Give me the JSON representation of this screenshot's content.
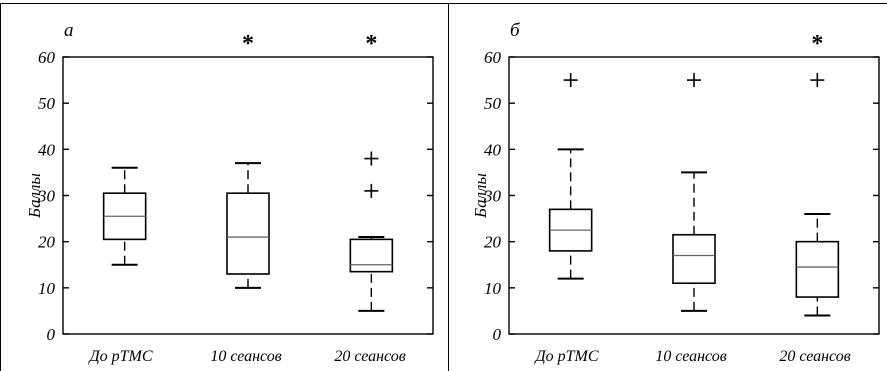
{
  "chart_data": [
    {
      "type": "box",
      "panel_label": "а",
      "ylabel": "Баллы",
      "ylim": [
        0,
        60
      ],
      "yticks": [
        "0",
        "10",
        "20",
        "30",
        "40",
        "50",
        "60"
      ],
      "grid": false,
      "categories": [
        "До рТМС",
        "10 сеансов",
        "20 сеансов"
      ],
      "boxes": [
        {
          "whisker_low": 15,
          "q1": 20.5,
          "median": 25.5,
          "q3": 30.5,
          "whisker_high": 36,
          "outliers": []
        },
        {
          "whisker_low": 10,
          "q1": 13,
          "median": 21,
          "q3": 30.5,
          "whisker_high": 37,
          "outliers": []
        },
        {
          "whisker_low": 5,
          "q1": 13.5,
          "median": 15,
          "q3": 20.5,
          "whisker_high": 21,
          "outliers": [
            31,
            38
          ]
        }
      ],
      "significance": [
        "",
        "*",
        "*"
      ]
    },
    {
      "type": "box",
      "panel_label": "б",
      "ylabel": "Баллы",
      "ylim": [
        0,
        60
      ],
      "yticks": [
        "0",
        "10",
        "20",
        "30",
        "40",
        "50",
        "60"
      ],
      "grid": false,
      "categories": [
        "До рТМС",
        "10 сеансов",
        "20 сеансов"
      ],
      "boxes": [
        {
          "whisker_low": 12,
          "q1": 18,
          "median": 22.5,
          "q3": 27,
          "whisker_high": 40,
          "outliers": [
            55
          ]
        },
        {
          "whisker_low": 5,
          "q1": 11,
          "median": 17,
          "q3": 21.5,
          "whisker_high": 35,
          "outliers": [
            55
          ]
        },
        {
          "whisker_low": 4,
          "q1": 8,
          "median": 14.5,
          "q3": 20,
          "whisker_high": 26,
          "outliers": [
            55
          ]
        }
      ],
      "significance": [
        "",
        "",
        "*"
      ]
    }
  ]
}
